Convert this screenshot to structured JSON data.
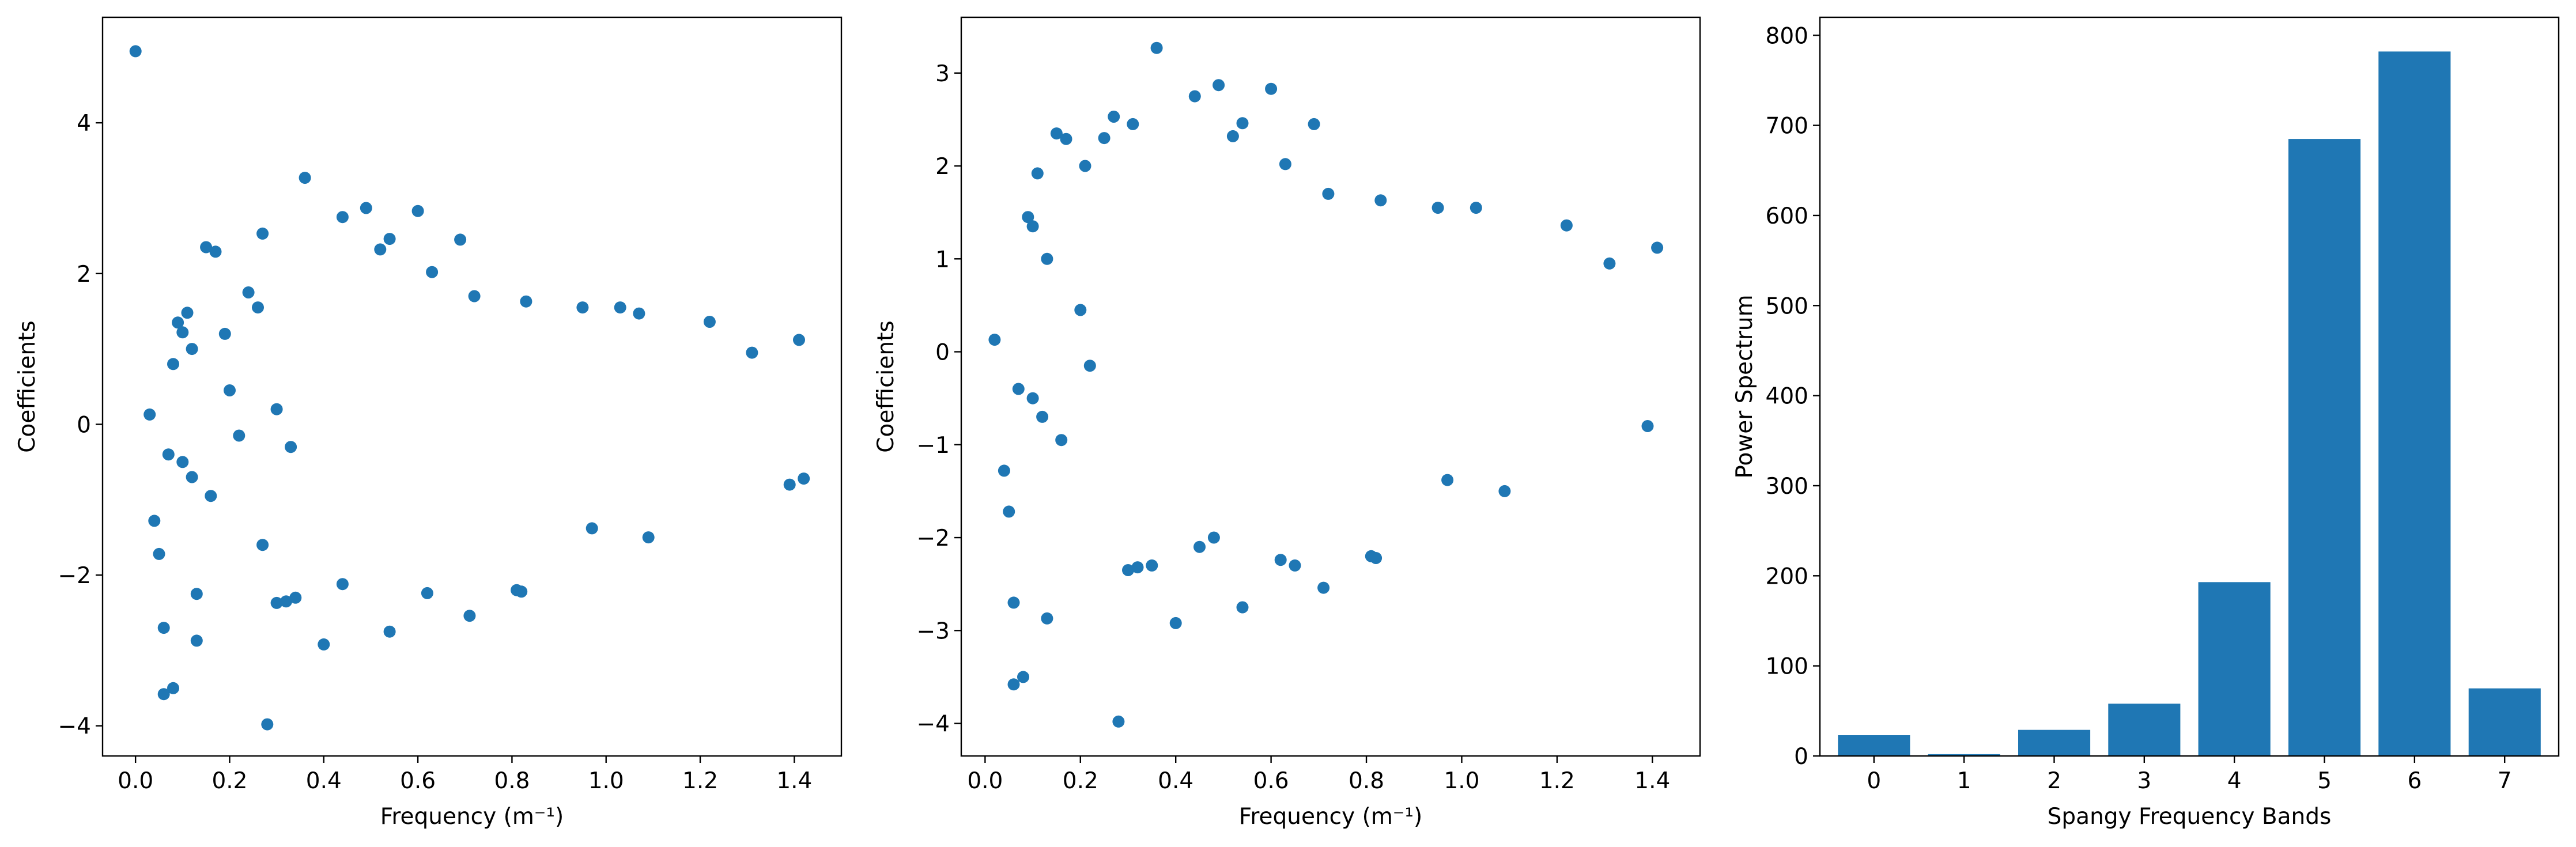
{
  "chart_data": [
    {
      "type": "scatter",
      "title": "",
      "xlabel": "Frequency (m⁻¹)",
      "ylabel": "Coefficients",
      "xlim": [
        -0.07,
        1.5
      ],
      "ylim": [
        -4.4,
        5.4
      ],
      "x_ticks": [
        0.0,
        0.2,
        0.4,
        0.6,
        0.8,
        1.0,
        1.2,
        1.4
      ],
      "x_tick_labels": [
        "0.0",
        "0.2",
        "0.4",
        "0.6",
        "0.8",
        "1.0",
        "1.2",
        "1.4"
      ],
      "y_ticks": [
        -4,
        -2,
        0,
        2,
        4
      ],
      "y_tick_labels": [
        "−4",
        "−2",
        "0",
        "2",
        "4"
      ],
      "grid": false,
      "color": "#1f77b4",
      "points": [
        [
          0.0,
          4.95
        ],
        [
          0.03,
          0.13
        ],
        [
          0.04,
          -1.28
        ],
        [
          0.05,
          -1.72
        ],
        [
          0.06,
          -2.7
        ],
        [
          0.06,
          -3.58
        ],
        [
          0.08,
          -3.5
        ],
        [
          0.13,
          -2.87
        ],
        [
          0.28,
          -3.98
        ],
        [
          0.13,
          -2.25
        ],
        [
          0.36,
          3.27
        ],
        [
          0.49,
          2.87
        ],
        [
          0.6,
          2.83
        ],
        [
          0.44,
          2.75
        ],
        [
          0.27,
          2.53
        ],
        [
          0.54,
          2.46
        ],
        [
          0.52,
          2.32
        ],
        [
          0.15,
          2.35
        ],
        [
          0.17,
          2.29
        ],
        [
          0.4,
          -2.92
        ],
        [
          0.54,
          -2.75
        ],
        [
          0.71,
          -2.54
        ],
        [
          0.62,
          -2.24
        ],
        [
          0.81,
          -2.2
        ],
        [
          0.82,
          -2.22
        ],
        [
          0.32,
          -2.35
        ],
        [
          0.3,
          -2.37
        ],
        [
          0.34,
          -2.3
        ],
        [
          0.44,
          -2.12
        ],
        [
          0.69,
          2.45
        ],
        [
          0.63,
          2.02
        ],
        [
          0.72,
          1.7
        ],
        [
          0.83,
          1.63
        ],
        [
          0.95,
          1.55
        ],
        [
          1.03,
          1.55
        ],
        [
          1.07,
          1.47
        ],
        [
          1.22,
          1.36
        ],
        [
          1.09,
          -1.5
        ],
        [
          0.97,
          -1.38
        ],
        [
          1.31,
          0.95
        ],
        [
          1.41,
          1.12
        ],
        [
          1.39,
          -0.8
        ],
        [
          1.42,
          -0.72
        ],
        [
          0.11,
          1.48
        ],
        [
          0.09,
          1.35
        ],
        [
          0.1,
          1.22
        ],
        [
          0.12,
          1.0
        ],
        [
          0.08,
          0.8
        ],
        [
          0.07,
          -0.4
        ],
        [
          0.1,
          -0.5
        ],
        [
          0.12,
          -0.7
        ],
        [
          0.16,
          -0.95
        ],
        [
          0.2,
          0.45
        ],
        [
          0.22,
          -0.15
        ],
        [
          0.24,
          1.75
        ],
        [
          0.19,
          1.2
        ],
        [
          0.26,
          1.55
        ],
        [
          0.27,
          -1.6
        ],
        [
          0.3,
          0.2
        ],
        [
          0.33,
          -0.3
        ]
      ]
    },
    {
      "type": "scatter",
      "title": "",
      "xlabel": "Frequency (m⁻¹)",
      "ylabel": "Coefficients",
      "xlim": [
        -0.05,
        1.5
      ],
      "ylim": [
        -4.35,
        3.6
      ],
      "x_ticks": [
        0.0,
        0.2,
        0.4,
        0.6,
        0.8,
        1.0,
        1.2,
        1.4
      ],
      "x_tick_labels": [
        "0.0",
        "0.2",
        "0.4",
        "0.6",
        "0.8",
        "1.0",
        "1.2",
        "1.4"
      ],
      "y_ticks": [
        -4,
        -3,
        -2,
        -1,
        0,
        1,
        2,
        3
      ],
      "y_tick_labels": [
        "−4",
        "−3",
        "−2",
        "−1",
        "0",
        "1",
        "2",
        "3"
      ],
      "grid": false,
      "color": "#1f77b4",
      "points": [
        [
          0.02,
          0.13
        ],
        [
          0.04,
          -1.28
        ],
        [
          0.05,
          -1.72
        ],
        [
          0.06,
          -2.7
        ],
        [
          0.06,
          -3.58
        ],
        [
          0.08,
          -3.5
        ],
        [
          0.13,
          -2.87
        ],
        [
          0.28,
          -3.98
        ],
        [
          0.36,
          3.27
        ],
        [
          0.49,
          2.87
        ],
        [
          0.6,
          2.83
        ],
        [
          0.44,
          2.75
        ],
        [
          0.27,
          2.53
        ],
        [
          0.54,
          2.46
        ],
        [
          0.52,
          2.32
        ],
        [
          0.15,
          2.35
        ],
        [
          0.17,
          2.29
        ],
        [
          0.4,
          -2.92
        ],
        [
          0.54,
          -2.75
        ],
        [
          0.71,
          -2.54
        ],
        [
          0.81,
          -2.2
        ],
        [
          0.82,
          -2.22
        ],
        [
          0.69,
          2.45
        ],
        [
          0.11,
          1.92
        ],
        [
          0.09,
          1.45
        ],
        [
          0.1,
          1.35
        ],
        [
          0.13,
          1.0
        ],
        [
          0.31,
          2.45
        ],
        [
          0.25,
          2.3
        ],
        [
          0.21,
          2.0
        ],
        [
          0.63,
          2.02
        ],
        [
          0.72,
          1.7
        ],
        [
          0.83,
          1.63
        ],
        [
          0.95,
          1.55
        ],
        [
          1.03,
          1.55
        ],
        [
          1.22,
          1.36
        ],
        [
          1.09,
          -1.5
        ],
        [
          0.97,
          -1.38
        ],
        [
          1.31,
          0.95
        ],
        [
          1.41,
          1.12
        ],
        [
          1.39,
          -0.8
        ],
        [
          0.07,
          -0.4
        ],
        [
          0.1,
          -0.5
        ],
        [
          0.12,
          -0.7
        ],
        [
          0.16,
          -0.95
        ],
        [
          0.2,
          0.45
        ],
        [
          0.22,
          -0.15
        ],
        [
          0.3,
          -2.35
        ],
        [
          0.32,
          -2.32
        ],
        [
          0.35,
          -2.3
        ],
        [
          0.45,
          -2.1
        ],
        [
          0.48,
          -2.0
        ],
        [
          0.62,
          -2.24
        ],
        [
          0.65,
          -2.3
        ]
      ]
    },
    {
      "type": "bar",
      "title": "",
      "xlabel": "Spangy Frequency Bands",
      "ylabel": "Power Spectrum",
      "categories": [
        "0",
        "1",
        "2",
        "3",
        "4",
        "5",
        "6",
        "7"
      ],
      "values": [
        23,
        2,
        29,
        58,
        193,
        685,
        782,
        75
      ],
      "ylim": [
        0,
        820
      ],
      "y_ticks": [
        0,
        100,
        200,
        300,
        400,
        500,
        600,
        700,
        800
      ],
      "y_tick_labels": [
        "0",
        "100",
        "200",
        "300",
        "400",
        "500",
        "600",
        "700",
        "800"
      ],
      "grid": false,
      "color": "#1f77b4"
    }
  ]
}
